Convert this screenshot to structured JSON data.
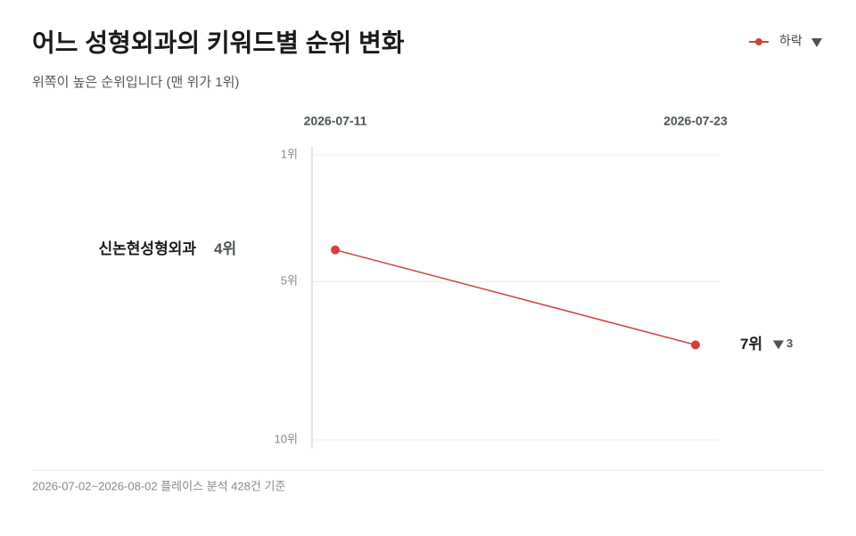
{
  "chart_data": {
    "type": "slope",
    "title": "어느 성형외과의 키워드별 순위 변화",
    "subtitle": "위쪽이 높은 순위입니다 (맨 위가 1위)",
    "legend": "하락",
    "categories": [
      "2026-07-11",
      "2026-07-23"
    ],
    "ylim": [
      1,
      10
    ],
    "reversed": true,
    "yticks": [
      {
        "value": 1,
        "label": "1위"
      },
      {
        "value": 5,
        "label": "5위"
      },
      {
        "value": 10,
        "label": "10위"
      }
    ],
    "grid": true,
    "series": [
      {
        "name": "신논현성형외과",
        "color": "#d23f3f",
        "values": [
          4,
          7
        ],
        "value_labels": [
          "4위",
          "7위"
        ],
        "change": 3
      }
    ],
    "footer": "2026-07-02~2026-08-02 플레이스 분석 428건 기준"
  }
}
